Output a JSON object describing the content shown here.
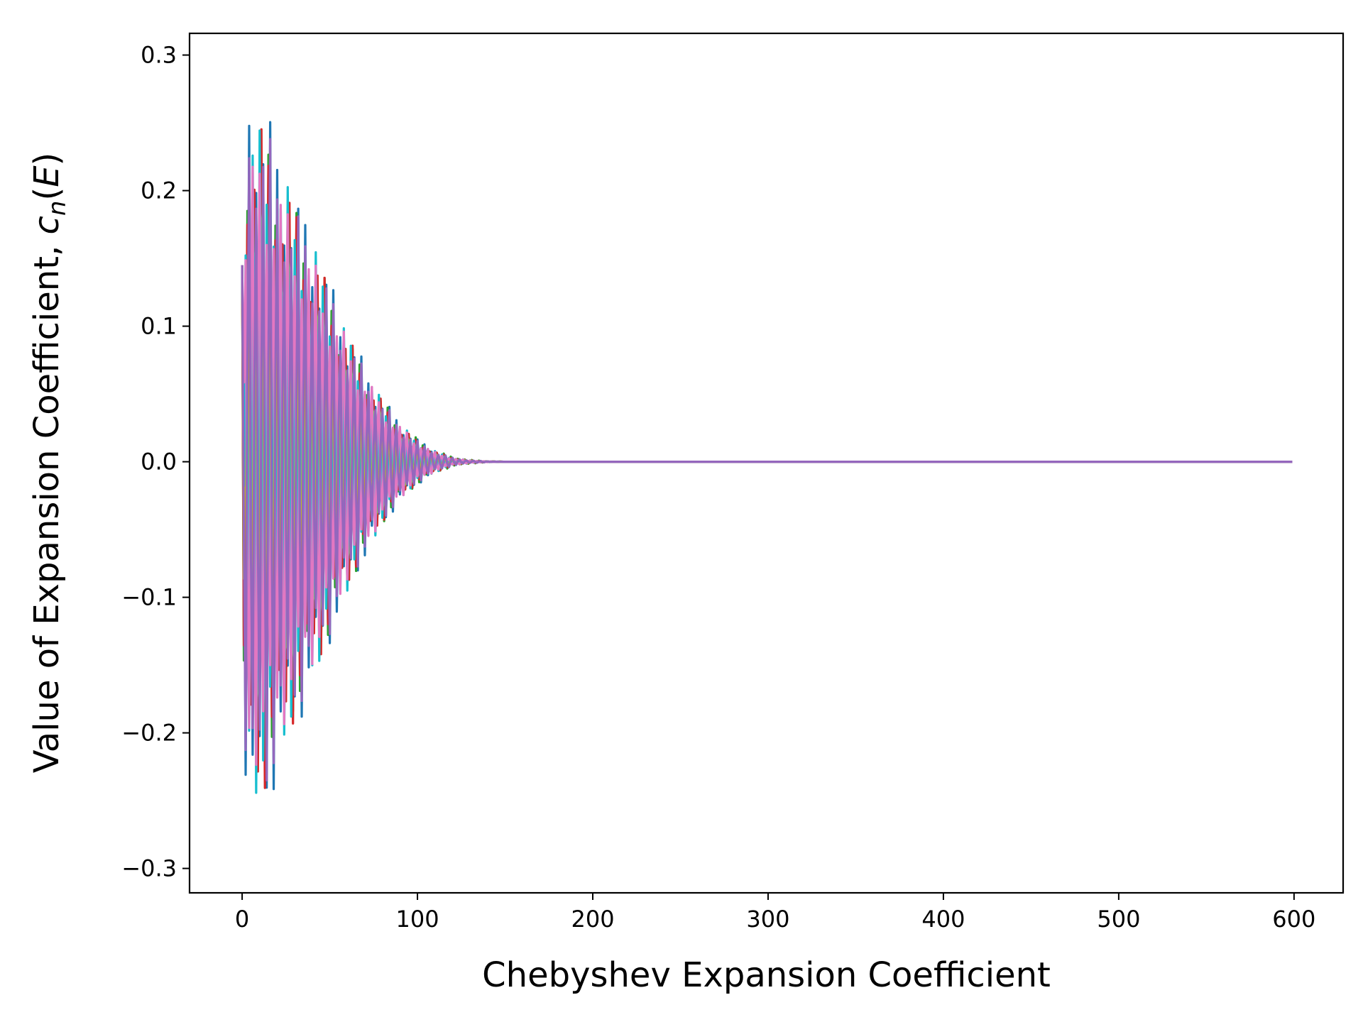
{
  "chart_data": {
    "type": "line",
    "title": "",
    "xlabel": "Chebyshev Expansion Coefficient",
    "ylabel": {
      "prefix": "Value of Expansion Coefficient, ",
      "symbol": "c",
      "subscript": "n",
      "open": "(",
      "argument": "E",
      "close": ")"
    },
    "xlim": [
      -30,
      628
    ],
    "ylim": [
      -0.318,
      0.316
    ],
    "xticks": [
      0,
      100,
      200,
      300,
      400,
      500,
      600
    ],
    "xtick_labels": [
      "0",
      "100",
      "200",
      "300",
      "400",
      "500",
      "600"
    ],
    "yticks": [
      -0.3,
      -0.2,
      -0.1,
      0.0,
      0.1,
      0.2,
      0.3
    ],
    "ytick_labels": [
      "−0.3",
      "−0.2",
      "−0.1",
      "0.0",
      "0.1",
      "0.2",
      "0.3"
    ],
    "grid": false,
    "legend": false,
    "num_coefficients": 600,
    "series_colors": [
      "#1f77b4",
      "#ff7f0e",
      "#2ca02c",
      "#d62728",
      "#9467bd",
      "#8c564b",
      "#e377c2",
      "#7f7f7f",
      "#bcbd22",
      "#17becf"
    ],
    "series": [
      {
        "color": "#1f77b4",
        "envelope_x": [
          0,
          3,
          10,
          20,
          30,
          40,
          50,
          60,
          70,
          80,
          90,
          100,
          110,
          120,
          130,
          140,
          150,
          599
        ],
        "envelope_y": [
          0.145,
          0.288,
          0.28,
          0.235,
          0.2,
          0.17,
          0.135,
          0.1,
          0.072,
          0.048,
          0.03,
          0.017,
          0.008,
          0.003,
          0.001,
          0.0003,
          0.0,
          0.0
        ],
        "phase": 0.0
      },
      {
        "color": "#ff7f0e",
        "envelope_x": [
          0,
          3,
          10,
          20,
          30,
          40,
          50,
          60,
          70,
          80,
          90,
          100,
          110,
          120,
          130,
          140,
          150,
          599
        ],
        "envelope_y": [
          0.145,
          0.28,
          0.27,
          0.23,
          0.197,
          0.167,
          0.132,
          0.098,
          0.07,
          0.047,
          0.029,
          0.016,
          0.008,
          0.003,
          0.001,
          0.0003,
          0.0,
          0.0
        ],
        "phase": 0.6
      },
      {
        "color": "#2ca02c",
        "envelope_x": [
          0,
          3,
          10,
          20,
          30,
          40,
          50,
          60,
          70,
          80,
          90,
          100,
          110,
          120,
          130,
          140,
          150,
          599
        ],
        "envelope_y": [
          0.145,
          0.265,
          0.262,
          0.232,
          0.2,
          0.17,
          0.136,
          0.1,
          0.073,
          0.049,
          0.031,
          0.018,
          0.009,
          0.004,
          0.0015,
          0.0004,
          0.0,
          0.0
        ],
        "phase": 1.2
      },
      {
        "color": "#d62728",
        "envelope_x": [
          0,
          3,
          10,
          20,
          30,
          40,
          50,
          60,
          70,
          80,
          90,
          100,
          110,
          120,
          130,
          140,
          150,
          599
        ],
        "envelope_y": [
          0.145,
          0.255,
          0.258,
          0.228,
          0.195,
          0.165,
          0.13,
          0.096,
          0.069,
          0.046,
          0.028,
          0.016,
          0.008,
          0.003,
          0.001,
          0.0003,
          0.0,
          0.0
        ],
        "phase": 1.8
      },
      {
        "color": "#bcbd22",
        "envelope_x": [
          0,
          3,
          10,
          20,
          30,
          40,
          50,
          60,
          70,
          80,
          90,
          100,
          110,
          120,
          130,
          140,
          150,
          599
        ],
        "envelope_y": [
          0.145,
          0.25,
          0.255,
          0.226,
          0.197,
          0.168,
          0.134,
          0.099,
          0.072,
          0.048,
          0.03,
          0.017,
          0.008,
          0.003,
          0.001,
          0.0003,
          0.0,
          0.0
        ],
        "phase": 2.4
      },
      {
        "color": "#17becf",
        "envelope_x": [
          0,
          3,
          10,
          20,
          30,
          40,
          50,
          60,
          70,
          80,
          90,
          100,
          110,
          120,
          130,
          140,
          150,
          599
        ],
        "envelope_y": [
          0.145,
          0.245,
          0.25,
          0.222,
          0.193,
          0.164,
          0.13,
          0.096,
          0.069,
          0.046,
          0.028,
          0.016,
          0.008,
          0.003,
          0.001,
          0.0003,
          0.0,
          0.0
        ],
        "phase": 3.0
      },
      {
        "color": "#e377c2",
        "envelope_x": [
          0,
          3,
          10,
          20,
          30,
          40,
          50,
          60,
          70,
          80,
          90,
          100,
          110,
          120,
          130,
          140,
          150,
          599
        ],
        "envelope_y": [
          0.145,
          0.24,
          0.255,
          0.228,
          0.198,
          0.169,
          0.135,
          0.1,
          0.072,
          0.048,
          0.03,
          0.017,
          0.008,
          0.003,
          0.001,
          0.0003,
          0.0,
          0.0
        ],
        "phase": 3.6
      },
      {
        "color": "#9467bd",
        "envelope_x": [
          0,
          3,
          10,
          20,
          30,
          40,
          50,
          60,
          70,
          80,
          90,
          100,
          110,
          120,
          130,
          140,
          150,
          599
        ],
        "envelope_y": [
          0.145,
          0.288,
          0.275,
          0.232,
          0.198,
          0.168,
          0.133,
          0.098,
          0.071,
          0.047,
          0.029,
          0.016,
          0.008,
          0.003,
          0.001,
          0.0003,
          0.0,
          0.0
        ],
        "phase": 0.3
      }
    ]
  }
}
